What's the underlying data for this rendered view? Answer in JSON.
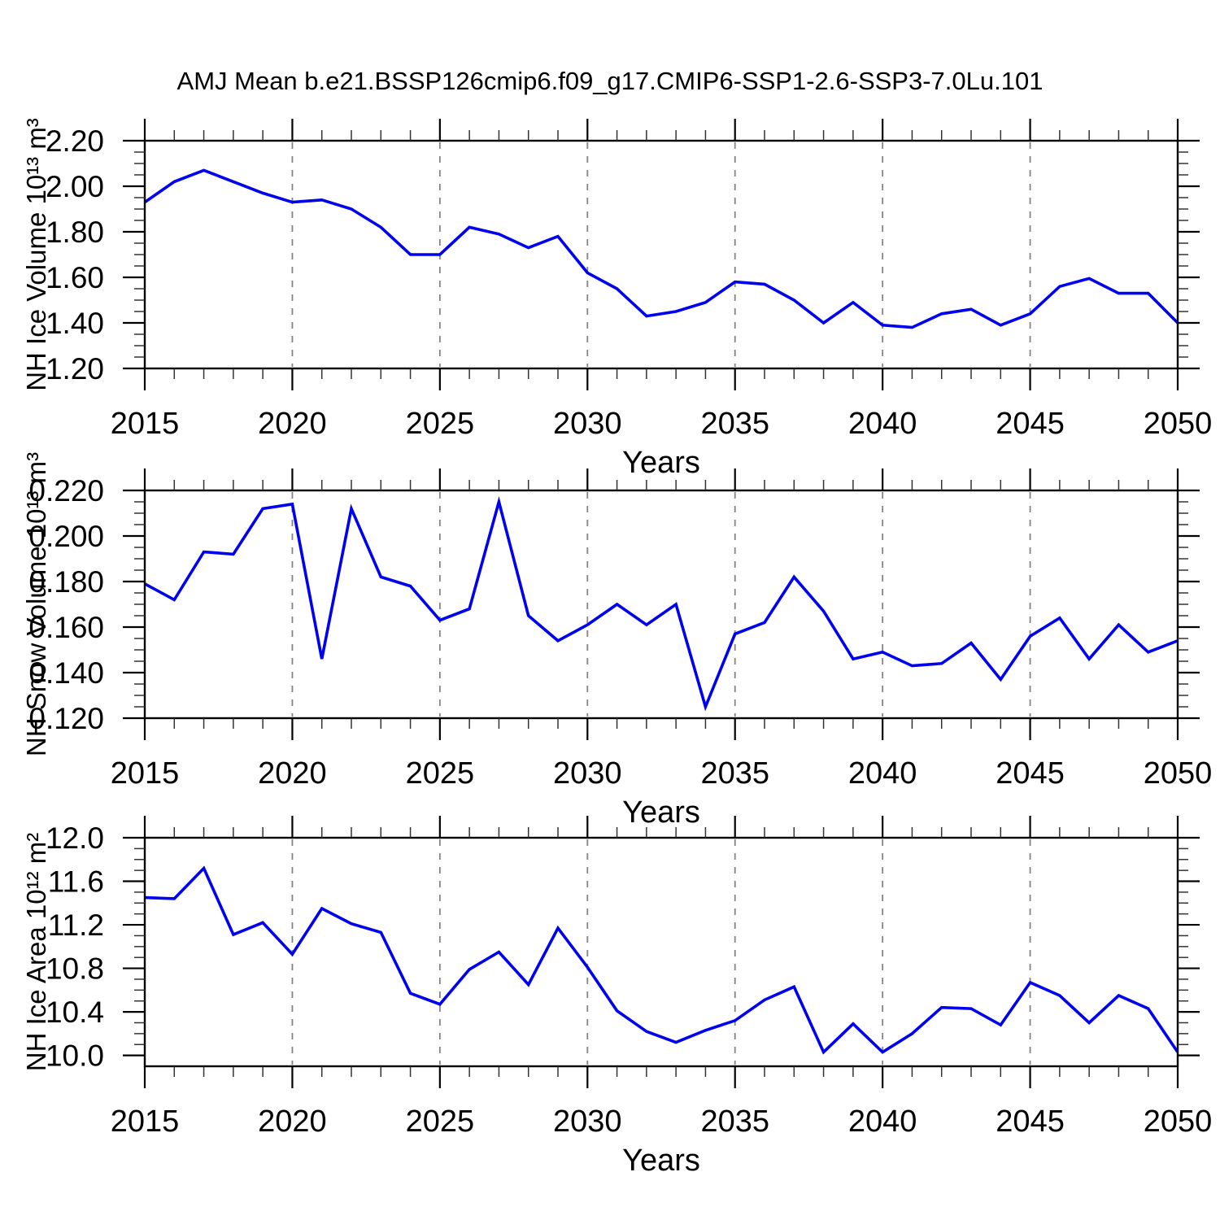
{
  "title": "AMJ Mean b.e21.BSSP126cmip6.f09_g17.CMIP6-SSP1-2.6-SSP3-7.0Lu.101",
  "colors": {
    "line": "#0000f0",
    "axis": "#000000",
    "minor_tick": "#333333",
    "grid": "#848484",
    "text": "#000000",
    "background": "#ffffff"
  },
  "chart_data": [
    {
      "id": "nh-ice-volume",
      "type": "line",
      "xlabel": "Years",
      "ylabel": "NH Ice Volume 10¹³ m³",
      "x": [
        2015,
        2016,
        2017,
        2018,
        2019,
        2020,
        2021,
        2022,
        2023,
        2024,
        2025,
        2026,
        2027,
        2028,
        2029,
        2030,
        2031,
        2032,
        2033,
        2034,
        2035,
        2036,
        2037,
        2038,
        2039,
        2040,
        2041,
        2042,
        2043,
        2044,
        2045,
        2046,
        2047,
        2048,
        2049,
        2050
      ],
      "values": [
        1.93,
        2.02,
        2.07,
        2.02,
        1.97,
        1.93,
        1.94,
        1.9,
        1.82,
        1.7,
        1.7,
        1.82,
        1.79,
        1.73,
        1.78,
        1.62,
        1.55,
        1.43,
        1.45,
        1.49,
        1.58,
        1.57,
        1.5,
        1.4,
        1.49,
        1.39,
        1.38,
        1.44,
        1.46,
        1.39,
        1.44,
        1.56,
        1.595,
        1.53,
        1.53,
        1.4
      ],
      "xlim": [
        2015,
        2050
      ],
      "ylim": [
        1.2,
        2.2
      ],
      "xticks": [
        "2015",
        "2020",
        "2025",
        "2030",
        "2035",
        "2040",
        "2045",
        "2050"
      ],
      "grid_x": [
        2020,
        2025,
        2030,
        2035,
        2040,
        2045
      ],
      "ytick_min": 1.2,
      "ytick_max": 2.2,
      "ytick_step": 0.2,
      "yminor_step": 0.05,
      "ytick_labels": [
        "2.20",
        "2.00",
        "1.80",
        "1.60",
        "1.40",
        "1.20"
      ],
      "grid": "vertical-dashed",
      "legend_position": "none"
    },
    {
      "id": "nh-snow-volume",
      "type": "line",
      "xlabel": "Years",
      "ylabel": "NH Snow Volume 10¹³ m³",
      "x": [
        2015,
        2016,
        2017,
        2018,
        2019,
        2020,
        2021,
        2022,
        2023,
        2024,
        2025,
        2026,
        2027,
        2028,
        2029,
        2030,
        2031,
        2032,
        2033,
        2034,
        2035,
        2036,
        2037,
        2038,
        2039,
        2040,
        2041,
        2042,
        2043,
        2044,
        2045,
        2046,
        2047,
        2048,
        2049,
        2050
      ],
      "values": [
        0.179,
        0.172,
        0.193,
        0.192,
        0.212,
        0.214,
        0.146,
        0.212,
        0.182,
        0.178,
        0.163,
        0.168,
        0.215,
        0.165,
        0.154,
        0.161,
        0.17,
        0.161,
        0.17,
        0.125,
        0.157,
        0.162,
        0.182,
        0.167,
        0.146,
        0.149,
        0.143,
        0.144,
        0.153,
        0.137,
        0.156,
        0.164,
        0.146,
        0.161,
        0.149,
        0.154
      ],
      "xlim": [
        2015,
        2050
      ],
      "ylim": [
        0.12,
        0.22
      ],
      "xticks": [
        "2015",
        "2020",
        "2025",
        "2030",
        "2035",
        "2040",
        "2045",
        "2050"
      ],
      "grid_x": [
        2020,
        2025,
        2030,
        2035,
        2040,
        2045
      ],
      "ytick_min": 0.12,
      "ytick_max": 0.22,
      "ytick_step": 0.02,
      "yminor_step": 0.005,
      "ytick_labels": [
        "0.220",
        "0.200",
        "0.180",
        "0.160",
        "0.140",
        "0.120"
      ],
      "grid": "vertical-dashed",
      "legend_position": "none"
    },
    {
      "id": "nh-ice-area",
      "type": "line",
      "xlabel": "Years",
      "ylabel": "NH Ice Area 10¹² m²",
      "x": [
        2015,
        2016,
        2017,
        2018,
        2019,
        2020,
        2021,
        2022,
        2023,
        2024,
        2025,
        2026,
        2027,
        2028,
        2029,
        2030,
        2031,
        2032,
        2033,
        2034,
        2035,
        2036,
        2037,
        2038,
        2039,
        2040,
        2041,
        2042,
        2043,
        2044,
        2045,
        2046,
        2047,
        2048,
        2049,
        2050
      ],
      "values": [
        11.45,
        11.44,
        11.72,
        11.11,
        11.22,
        10.93,
        11.35,
        11.21,
        11.13,
        10.57,
        10.47,
        10.79,
        10.95,
        10.65,
        11.17,
        10.81,
        10.41,
        10.22,
        10.12,
        10.23,
        10.32,
        10.51,
        10.63,
        10.03,
        10.29,
        10.03,
        10.2,
        10.44,
        10.43,
        10.28,
        10.67,
        10.55,
        10.3,
        10.55,
        10.43,
        10.03
      ],
      "xlim": [
        2015,
        2050
      ],
      "ylim": [
        9.9,
        12.0
      ],
      "xticks": [
        "2015",
        "2020",
        "2025",
        "2030",
        "2035",
        "2040",
        "2045",
        "2050"
      ],
      "grid_x": [
        2020,
        2025,
        2030,
        2035,
        2040,
        2045
      ],
      "ytick_min": 10.0,
      "ytick_max": 12.0,
      "ytick_step": 0.4,
      "yminor_step": 0.1,
      "ytick_labels": [
        "12.0",
        "11.6",
        "11.2",
        "10.8",
        "10.4",
        "10.0"
      ],
      "grid": "vertical-dashed",
      "legend_position": "none"
    }
  ]
}
